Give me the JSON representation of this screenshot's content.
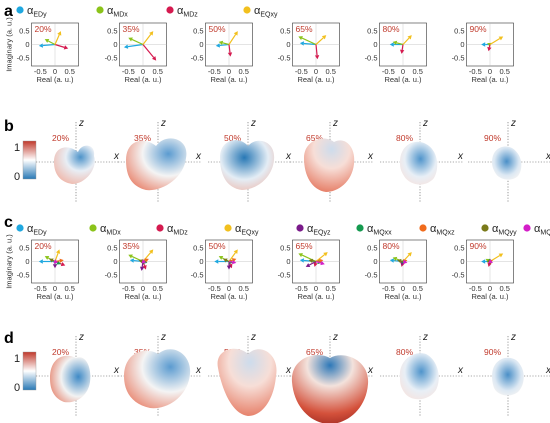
{
  "figure": {
    "panels": {
      "a": {
        "letter": "a",
        "legend": [
          {
            "base": "α",
            "sub": "EDy",
            "color": "#1fa8e0"
          },
          {
            "base": "α",
            "sub": "MDx",
            "color": "#8bc31a"
          },
          {
            "base": "α",
            "sub": "MDz",
            "color": "#d51a4f"
          },
          {
            "base": "α",
            "sub": "EQxy",
            "color": "#f2c01e"
          }
        ]
      },
      "b": {
        "letter": "b"
      },
      "c": {
        "letter": "c",
        "legend": [
          {
            "base": "α",
            "sub": "EDy",
            "color": "#1fa8e0"
          },
          {
            "base": "α",
            "sub": "MDx",
            "color": "#8bc31a"
          },
          {
            "base": "α",
            "sub": "MDz",
            "color": "#d51a4f"
          },
          {
            "base": "α",
            "sub": "EQxy",
            "color": "#f2c01e"
          },
          {
            "base": "α",
            "sub": "EQyz",
            "color": "#7a1a8a"
          },
          {
            "base": "α",
            "sub": "MQxx",
            "color": "#159a4f"
          },
          {
            "base": "α",
            "sub": "MQxz",
            "color": "#f06b1c"
          },
          {
            "base": "α",
            "sub": "MQyy",
            "color": "#7a7a1a"
          },
          {
            "base": "α",
            "sub": "MQzz",
            "color": "#d41ec8"
          }
        ]
      },
      "d": {
        "letter": "d"
      }
    },
    "percentages": [
      "20%",
      "35%",
      "50%",
      "65%",
      "80%",
      "90%"
    ],
    "axes": {
      "ylabel": "Imaginary (a. u.)",
      "xlabel": "Real (a. u.)",
      "yticks": [
        "0.5",
        "0",
        "-0.5"
      ],
      "xticks": [
        "-0.5",
        "0",
        "0.5"
      ]
    },
    "pattern_axes": {
      "z_label": "z",
      "x_label": "x"
    },
    "colorbar": {
      "max_label": "1",
      "min_label": "0",
      "colors": [
        "#c0392b",
        "#ffffff",
        "#2878b5"
      ]
    }
  },
  "chart_data": [
    {
      "type": "vector",
      "panel": "a",
      "xlabel": "Real (a. u.)",
      "ylabel": "Imaginary (a. u.)",
      "xlim": [
        -0.8,
        0.8
      ],
      "ylim": [
        -0.8,
        0.8
      ],
      "categories": [
        "20%",
        "35%",
        "50%",
        "65%",
        "80%",
        "90%"
      ],
      "series": [
        {
          "name": "αEDy",
          "color": "#1fa8e0",
          "values": [
            [
              -0.55,
              -0.05
            ],
            [
              -0.65,
              -0.1
            ],
            [
              -0.45,
              -0.05
            ],
            [
              -0.55,
              0.05
            ],
            [
              -0.45,
              0.0
            ],
            [
              -0.3,
              0.0
            ]
          ]
        },
        {
          "name": "αMDx",
          "color": "#8bc31a",
          "values": [
            [
              -0.35,
              0.2
            ],
            [
              -0.5,
              0.25
            ],
            [
              -0.35,
              0.1
            ],
            [
              -0.6,
              0.3
            ],
            [
              -0.35,
              0.1
            ],
            [
              -0.1,
              0.05
            ]
          ]
        },
        {
          "name": "αMDz",
          "color": "#d51a4f",
          "values": [
            [
              0.45,
              -0.15
            ],
            [
              0.45,
              -0.6
            ],
            [
              0.05,
              -0.45
            ],
            [
              0.05,
              -0.55
            ],
            [
              -0.05,
              -0.35
            ],
            [
              -0.05,
              -0.25
            ]
          ]
        },
        {
          "name": "αEQxy",
          "color": "#f2c01e",
          "values": [
            [
              0.2,
              0.5
            ],
            [
              0.35,
              0.5
            ],
            [
              0.3,
              0.5
            ],
            [
              0.35,
              0.35
            ],
            [
              0.3,
              0.35
            ],
            [
              0.45,
              0.3
            ]
          ]
        }
      ]
    },
    {
      "type": "vector",
      "panel": "c",
      "xlabel": "Real (a. u.)",
      "ylabel": "Imaginary (a. u.)",
      "xlim": [
        -0.8,
        0.8
      ],
      "ylim": [
        -0.8,
        0.8
      ],
      "categories": [
        "20%",
        "35%",
        "50%",
        "65%",
        "80%",
        "90%"
      ],
      "series": [
        {
          "name": "αEDy",
          "color": "#1fa8e0",
          "values": [
            [
              -0.55,
              0.0
            ],
            [
              -0.45,
              0.05
            ],
            [
              -0.5,
              0.0
            ],
            [
              -0.55,
              0.05
            ],
            [
              -0.45,
              0.05
            ],
            [
              -0.3,
              0.0
            ]
          ]
        },
        {
          "name": "αMDx",
          "color": "#8bc31a",
          "values": [
            [
              -0.35,
              0.2
            ],
            [
              -0.5,
              0.25
            ],
            [
              -0.35,
              0.2
            ],
            [
              -0.6,
              0.3
            ],
            [
              -0.35,
              0.15
            ],
            [
              -0.15,
              0.1
            ]
          ]
        },
        {
          "name": "αMDz",
          "color": "#d51a4f",
          "values": [
            [
              0.35,
              -0.15
            ],
            [
              0.1,
              -0.3
            ],
            [
              0.1,
              -0.25
            ],
            [
              -0.05,
              -0.2
            ],
            [
              -0.05,
              -0.2
            ],
            [
              -0.05,
              -0.2
            ]
          ]
        },
        {
          "name": "αEQxy",
          "color": "#f2c01e",
          "values": [
            [
              0.15,
              0.45
            ],
            [
              0.35,
              0.45
            ],
            [
              0.3,
              0.45
            ],
            [
              0.4,
              0.35
            ],
            [
              0.3,
              0.35
            ],
            [
              0.45,
              0.3
            ]
          ]
        },
        {
          "name": "αEQyz",
          "color": "#7a1a8a",
          "values": [
            [
              0.0,
              -0.25
            ],
            [
              -0.05,
              -0.35
            ],
            [
              0.0,
              -0.3
            ],
            [
              -0.35,
              -0.2
            ],
            [
              -0.05,
              -0.15
            ],
            [
              0.0,
              -0.1
            ]
          ]
        },
        {
          "name": "αMQxx",
          "color": "#159a4f",
          "values": [
            [
              0.2,
              -0.1
            ],
            [
              0.15,
              -0.05
            ],
            [
              0.15,
              -0.05
            ],
            [
              0.2,
              -0.05
            ],
            [
              0.1,
              -0.05
            ],
            [
              0.05,
              -0.05
            ]
          ]
        },
        {
          "name": "αMQxz",
          "color": "#f06b1c",
          "values": [
            [
              0.3,
              0.05
            ],
            [
              0.2,
              0.1
            ],
            [
              0.25,
              0.1
            ],
            [
              0.25,
              0.05
            ],
            [
              0.15,
              0.05
            ],
            [
              0.1,
              0.05
            ]
          ]
        },
        {
          "name": "αMQyy",
          "color": "#7a7a1a",
          "values": [
            [
              -0.2,
              0.1
            ],
            [
              -0.15,
              0.05
            ],
            [
              -0.2,
              0.1
            ],
            [
              -0.25,
              0.05
            ],
            [
              -0.2,
              0.05
            ],
            [
              -0.1,
              0.0
            ]
          ]
        },
        {
          "name": "αMQzz",
          "color": "#d41ec8",
          "values": [
            [
              0.1,
              -0.05
            ],
            [
              0.1,
              -0.05
            ],
            [
              0.25,
              -0.05
            ],
            [
              0.3,
              -0.1
            ],
            [
              0.15,
              -0.05
            ],
            [
              0.1,
              -0.05
            ]
          ]
        }
      ]
    }
  ]
}
